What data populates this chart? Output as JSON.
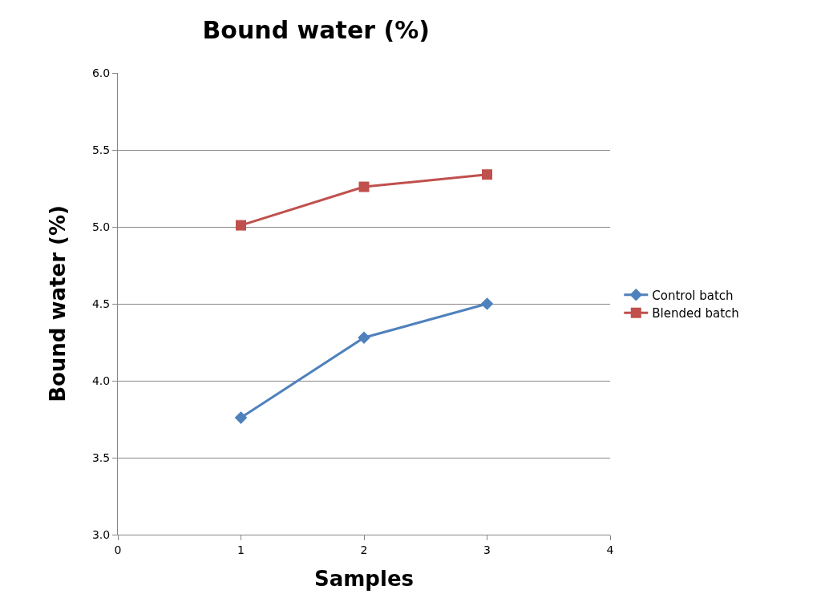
{
  "chart_data": {
    "type": "line",
    "title": "Bound water (%)",
    "xlabel": "Samples",
    "ylabel": "Bound water (%)",
    "x": [
      1,
      2,
      3
    ],
    "series": [
      {
        "name": "Control batch",
        "color": "#4f81bd",
        "marker": "diamond",
        "values": [
          3.76,
          4.28,
          4.5
        ]
      },
      {
        "name": "Blended batch",
        "color": "#c0504d",
        "marker": "square",
        "values": [
          5.01,
          5.26,
          5.34
        ]
      }
    ],
    "xlim": [
      0,
      4
    ],
    "xticks": [
      0,
      1,
      2,
      3,
      4
    ],
    "ylim": [
      3.0,
      6.0
    ],
    "yticks": [
      {
        "value": 3.0,
        "label": "3.0"
      },
      {
        "value": 3.5,
        "label": "3.5"
      },
      {
        "value": 4.0,
        "label": "4.0"
      },
      {
        "value": 4.5,
        "label": "4.5"
      },
      {
        "value": 5.0,
        "label": "5.0"
      },
      {
        "value": 5.5,
        "label": "5.5"
      },
      {
        "value": 6.0,
        "label": "6.0"
      }
    ],
    "grid": "y",
    "legend": "right",
    "line_style": "solid"
  }
}
